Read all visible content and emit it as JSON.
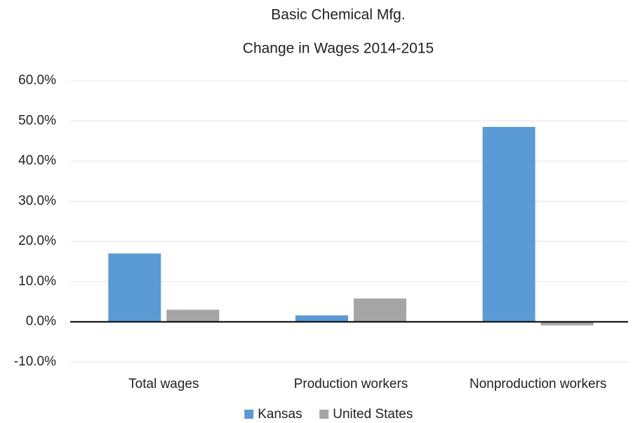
{
  "chart_data": {
    "type": "bar",
    "title": "Basic Chemical Mfg.",
    "subtitle": "Change in Wages 2014-2015",
    "categories": [
      "Total wages",
      "Production workers",
      "Nonproduction workers"
    ],
    "series": [
      {
        "name": "Kansas",
        "color": "#5b9bd5",
        "values": [
          17.0,
          1.6,
          48.5
        ]
      },
      {
        "name": "United States",
        "color": "#a5a5a5",
        "values": [
          3.0,
          5.8,
          -0.9
        ]
      }
    ],
    "ylim": [
      -10,
      60
    ],
    "yticks": [
      {
        "value": -10,
        "label": "-10.0%"
      },
      {
        "value": 0,
        "label": "0.0%"
      },
      {
        "value": 10,
        "label": "10.0%"
      },
      {
        "value": 20,
        "label": "20.0%"
      },
      {
        "value": 30,
        "label": "30.0%"
      },
      {
        "value": 40,
        "label": "40.0%"
      },
      {
        "value": 50,
        "label": "50.0%"
      },
      {
        "value": 60,
        "label": "60.0%"
      }
    ],
    "grid": true,
    "legend": "bottom"
  }
}
